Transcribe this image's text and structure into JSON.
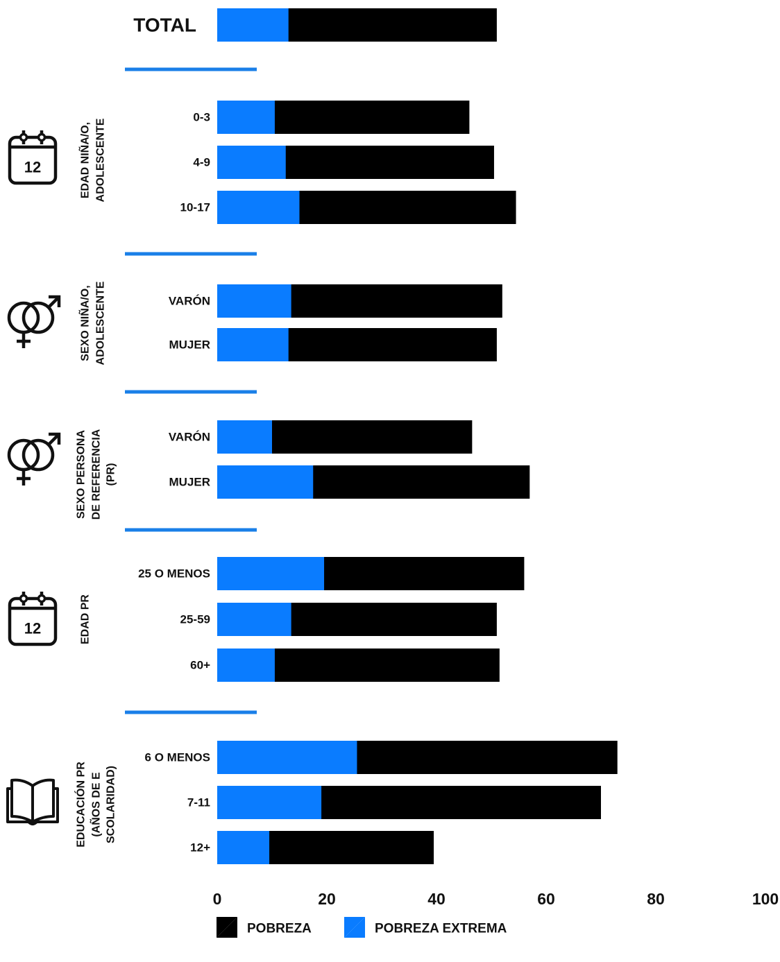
{
  "chart_data": {
    "type": "bar",
    "orientation": "horizontal",
    "stacked": true,
    "xlim": [
      0,
      100
    ],
    "xticks": [
      "0",
      "20",
      "40",
      "60",
      "80",
      "100"
    ],
    "colors": {
      "pobreza": "#000000",
      "pobreza_extrema": "#0a7cff",
      "divider": "#1a7fe8"
    },
    "legend": {
      "position": "bottom",
      "items": [
        {
          "name": "POBREZA",
          "color": "#000000"
        },
        {
          "name": "POBREZA EXTREMA",
          "color": "#0a7cff"
        }
      ]
    },
    "total": {
      "label": "TOTAL",
      "pobreza": 51,
      "pobreza_extrema": 13
    },
    "groups": [
      {
        "title_lines": [
          "EDAD NIÑA/O,",
          "ADOLESCENTE"
        ],
        "icon": "calendar-icon",
        "icon_text": "12",
        "categories": [
          "0-3",
          "4-9",
          "10-17"
        ],
        "pobreza": [
          46,
          50.5,
          54.5
        ],
        "pobreza_extrema": [
          10.5,
          12.5,
          15
        ]
      },
      {
        "title_lines": [
          "SEXO NIÑA/O,",
          "ADOLESCENTE"
        ],
        "icon": "gender-icon",
        "categories": [
          "VARÓN",
          "MUJER"
        ],
        "pobreza": [
          52,
          51
        ],
        "pobreza_extrema": [
          13.5,
          13
        ]
      },
      {
        "title_lines": [
          "SEXO PERSONA",
          "DE REFERENCIA",
          "(PR)"
        ],
        "icon": "gender-icon",
        "categories": [
          "VARÓN",
          "MUJER"
        ],
        "pobreza": [
          46.5,
          57
        ],
        "pobreza_extrema": [
          10,
          17.5
        ]
      },
      {
        "title_lines": [
          "EDAD PR"
        ],
        "icon": "calendar-icon",
        "icon_text": "12",
        "categories": [
          "25 O MENOS",
          "25-59",
          "60+"
        ],
        "pobreza": [
          56,
          51,
          51.5
        ],
        "pobreza_extrema": [
          19.5,
          13.5,
          10.5
        ]
      },
      {
        "title_lines": [
          "EDUCACIÓN PR",
          "(AÑOS DE E",
          "SCOLARIDAD)"
        ],
        "icon": "book-icon",
        "categories": [
          "6 O MENOS",
          "7-11",
          "12+"
        ],
        "pobreza": [
          73,
          70,
          39.5
        ],
        "pobreza_extrema": [
          25.5,
          19,
          9.5
        ]
      }
    ]
  }
}
